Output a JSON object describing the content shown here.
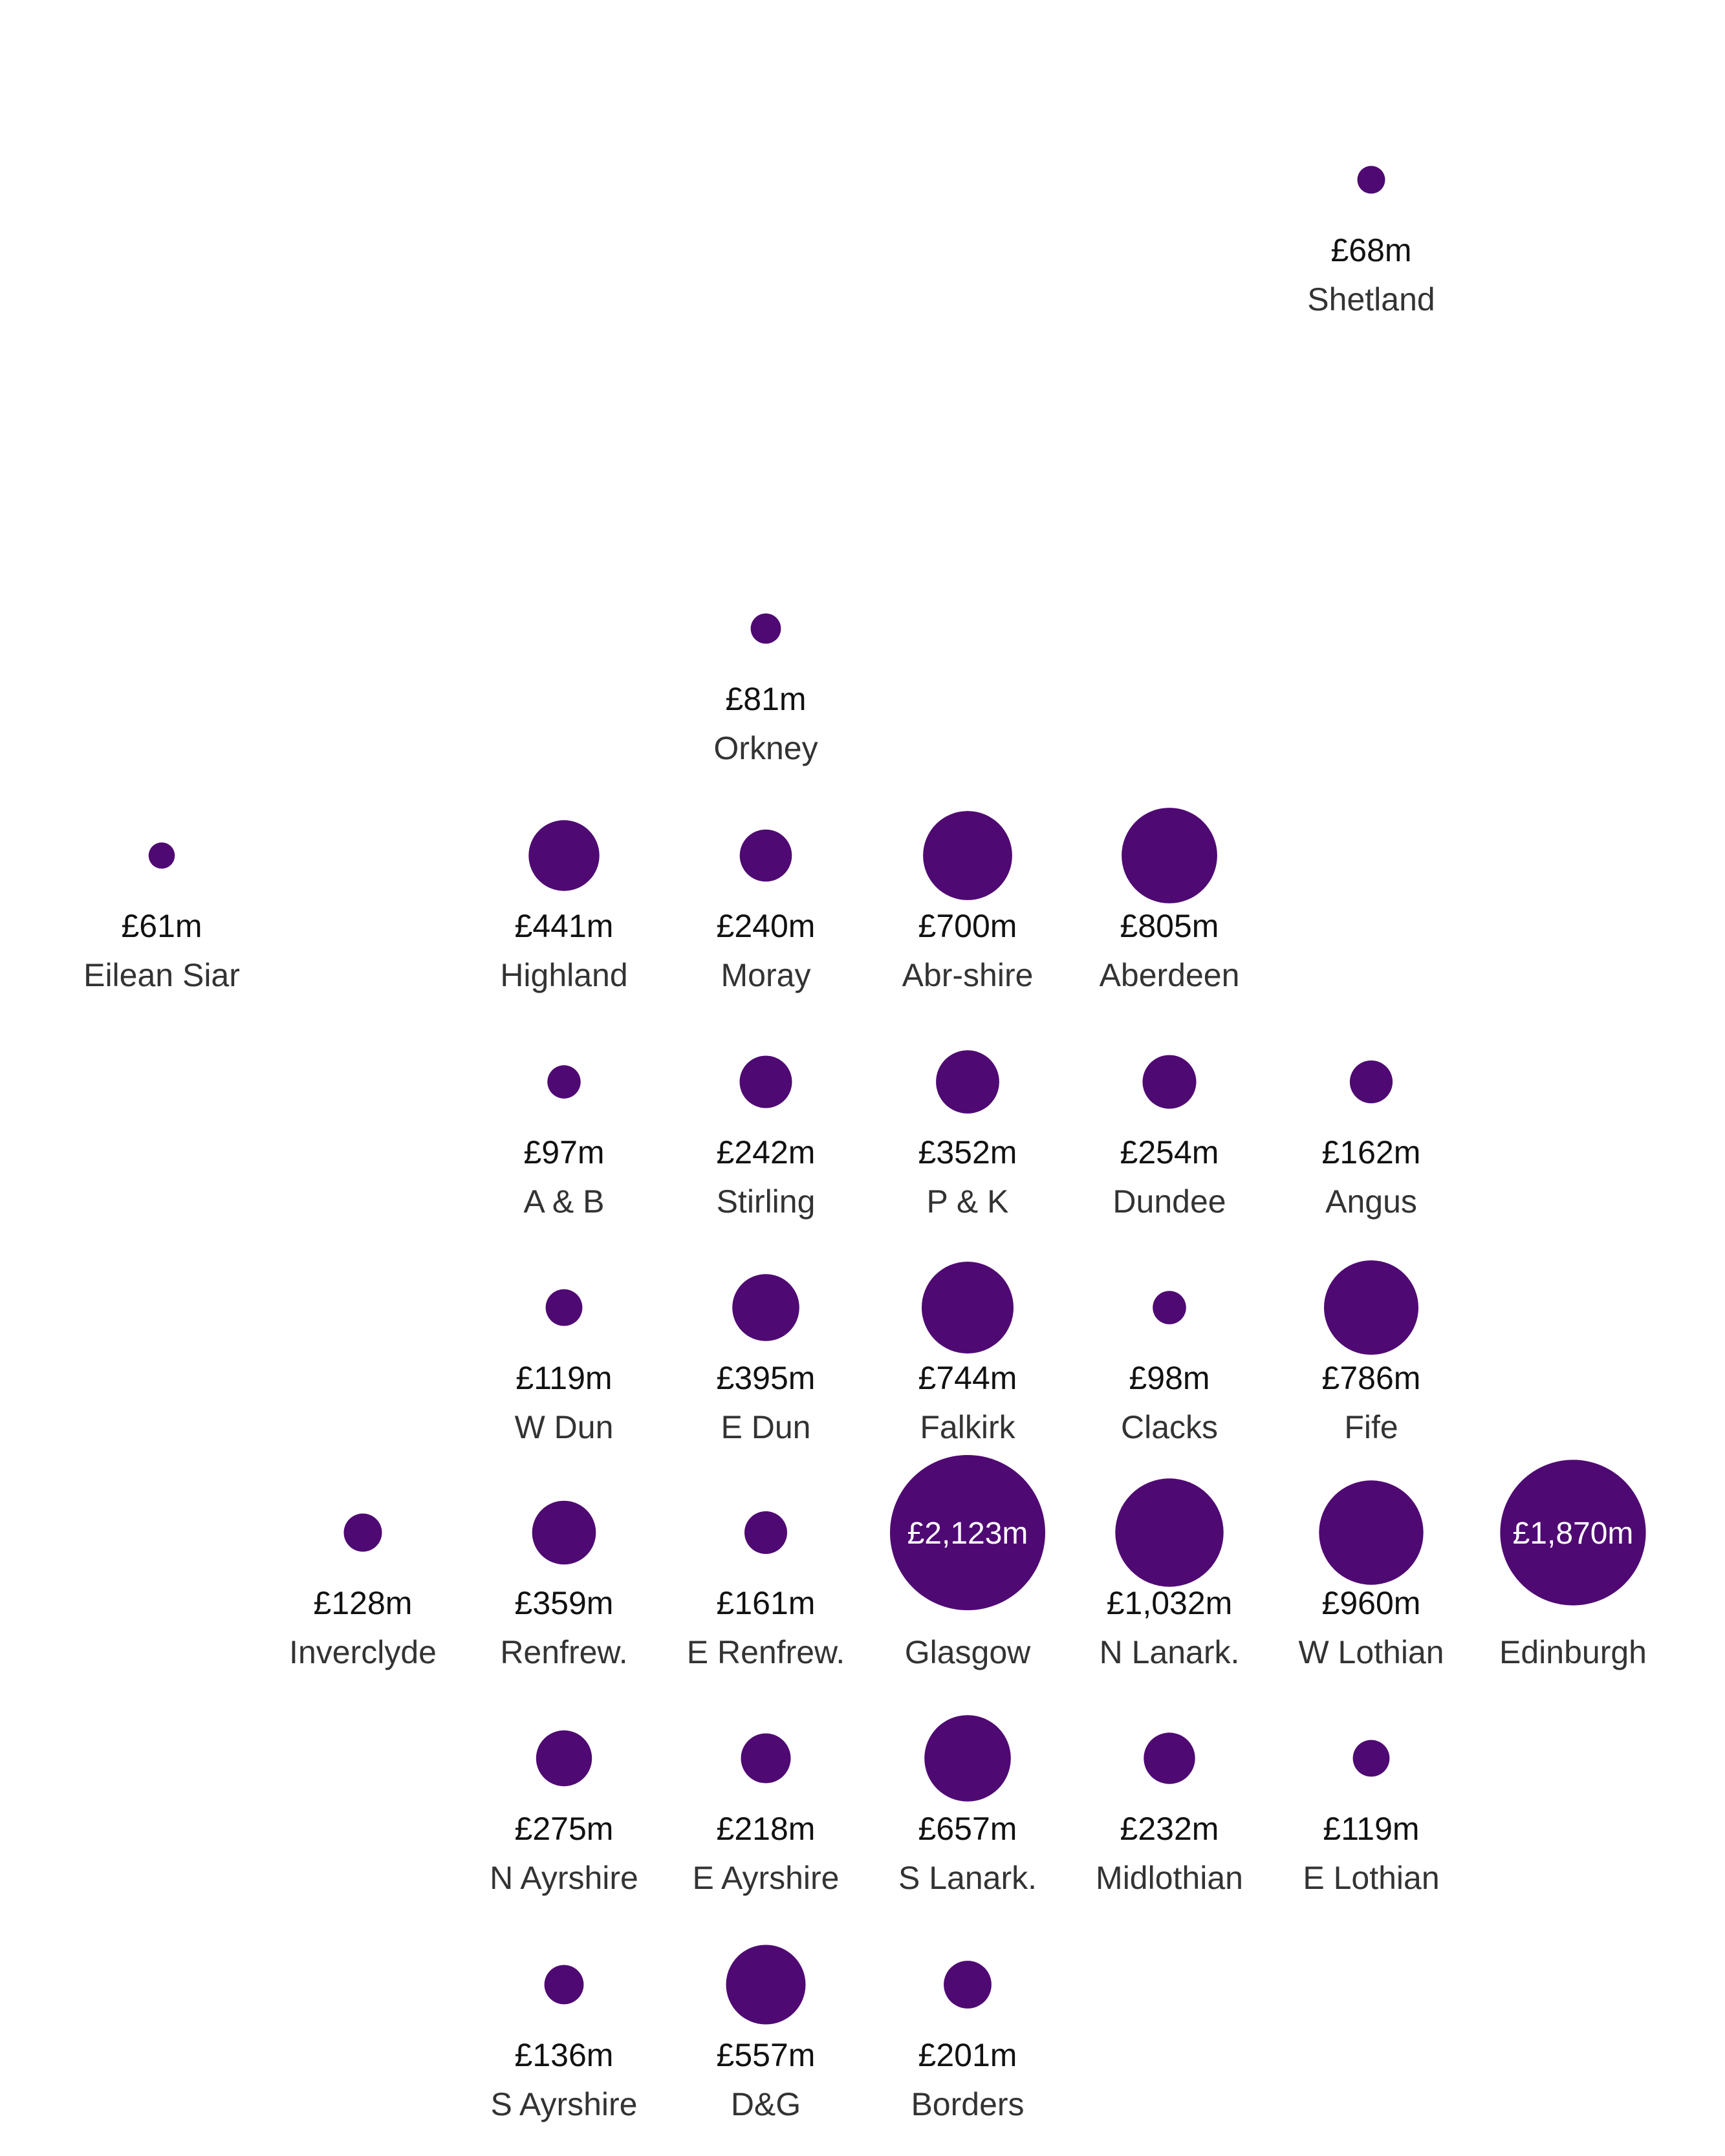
{
  "chart_data": {
    "type": "scatter",
    "unit_prefix": "£",
    "unit_suffix": "m",
    "color": "#4F0973",
    "label_color": "#ffffff",
    "grid": false,
    "legend": "none",
    "points": [
      {
        "name": "Shetland",
        "value": 68,
        "label": "£68m",
        "col": 6,
        "row": 0
      },
      {
        "name": "Orkney",
        "value": 81,
        "label": "£81m",
        "col": 3,
        "row": 2
      },
      {
        "name": "Eilean Siar",
        "value": 61,
        "label": "£61m",
        "col": 0,
        "row": 3
      },
      {
        "name": "Highland",
        "value": 441,
        "label": "£441m",
        "col": 2,
        "row": 3
      },
      {
        "name": "Moray",
        "value": 240,
        "label": "£240m",
        "col": 3,
        "row": 3
      },
      {
        "name": "Abr-shire",
        "value": 700,
        "label": "£700m",
        "col": 4,
        "row": 3
      },
      {
        "name": "Aberdeen",
        "value": 805,
        "label": "£805m",
        "col": 5,
        "row": 3
      },
      {
        "name": "A & B",
        "value": 97,
        "label": "£97m",
        "col": 2,
        "row": 4
      },
      {
        "name": "Stirling",
        "value": 242,
        "label": "£242m",
        "col": 3,
        "row": 4
      },
      {
        "name": "P & K",
        "value": 352,
        "label": "£352m",
        "col": 4,
        "row": 4
      },
      {
        "name": "Dundee",
        "value": 254,
        "label": "£254m",
        "col": 5,
        "row": 4
      },
      {
        "name": "Angus",
        "value": 162,
        "label": "£162m",
        "col": 6,
        "row": 4
      },
      {
        "name": "W Dun",
        "value": 119,
        "label": "£119m",
        "col": 2,
        "row": 5
      },
      {
        "name": "E Dun",
        "value": 395,
        "label": "£395m",
        "col": 3,
        "row": 5
      },
      {
        "name": "Falkirk",
        "value": 744,
        "label": "£744m",
        "col": 4,
        "row": 5
      },
      {
        "name": "Clacks",
        "value": 98,
        "label": "£98m",
        "col": 5,
        "row": 5
      },
      {
        "name": "Fife",
        "value": 786,
        "label": "£786m",
        "col": 6,
        "row": 5
      },
      {
        "name": "Inverclyde",
        "value": 128,
        "label": "£128m",
        "col": 1,
        "row": 6
      },
      {
        "name": "Renfrew.",
        "value": 359,
        "label": "£359m",
        "col": 2,
        "row": 6
      },
      {
        "name": "E Renfrew.",
        "value": 161,
        "label": "£161m",
        "col": 3,
        "row": 6
      },
      {
        "name": "Glasgow",
        "value": 2123,
        "label": "£2,123m",
        "col": 4,
        "row": 6,
        "label_inside": true
      },
      {
        "name": "N Lanark.",
        "value": 1032,
        "label": "£1,032m",
        "col": 5,
        "row": 6
      },
      {
        "name": "W Lothian",
        "value": 960,
        "label": "£960m",
        "col": 6,
        "row": 6
      },
      {
        "name": "Edinburgh",
        "value": 1870,
        "label": "£1,870m",
        "col": 7,
        "row": 6,
        "label_inside": true
      },
      {
        "name": "N Ayrshire",
        "value": 275,
        "label": "£275m",
        "col": 2,
        "row": 7
      },
      {
        "name": "E Ayrshire",
        "value": 218,
        "label": "£218m",
        "col": 3,
        "row": 7
      },
      {
        "name": "S Lanark.",
        "value": 657,
        "label": "£657m",
        "col": 4,
        "row": 7
      },
      {
        "name": "Midlothian",
        "value": 232,
        "label": "£232m",
        "col": 5,
        "row": 7
      },
      {
        "name": "E Lothian",
        "value": 119,
        "label": "£119m",
        "col": 6,
        "row": 7
      },
      {
        "name": "S Ayrshire",
        "value": 136,
        "label": "£136m",
        "col": 2,
        "row": 8
      },
      {
        "name": "D&G",
        "value": 557,
        "label": "£557m",
        "col": 3,
        "row": 8
      },
      {
        "name": "Borders",
        "value": 201,
        "label": "£201m",
        "col": 4,
        "row": 8
      }
    ]
  }
}
